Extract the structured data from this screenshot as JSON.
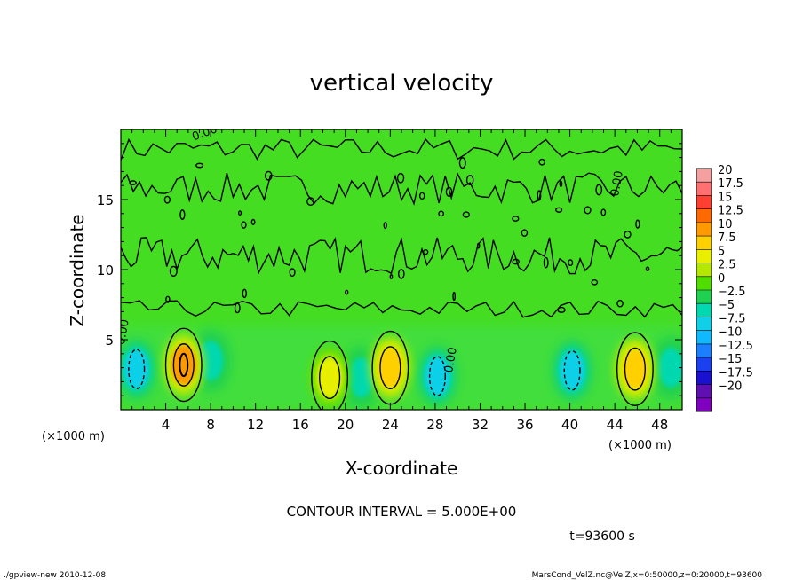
{
  "chart_data": {
    "type": "heatmap",
    "title": "vertical velocity",
    "xlabel": "X-coordinate",
    "ylabel": "Z-coordinate",
    "x_unit_left": "(×1000 m)",
    "x_unit_right": "(×1000 m)",
    "xlim": [
      0,
      50
    ],
    "ylim": [
      0,
      20
    ],
    "x_ticks": [
      4,
      8,
      12,
      16,
      20,
      24,
      28,
      32,
      36,
      40,
      44,
      48
    ],
    "y_ticks": [
      5,
      10,
      15
    ],
    "contour_interval_text": "CONTOUR INTERVAL = 5.000E+00",
    "time_text": "t=93600 s",
    "contour_label": "0.00",
    "colorbar": {
      "levels": [
        20,
        17.5,
        15,
        12.5,
        10,
        7.5,
        5,
        2.5,
        0,
        -2.5,
        -5,
        -7.5,
        -10,
        -12.5,
        -15,
        -17.5,
        -20
      ],
      "colors": [
        "#f4a0a0",
        "#ff7070",
        "#ff4030",
        "#ff6a00",
        "#ff9a00",
        "#ffd000",
        "#e8f000",
        "#b4e800",
        "#50dd00",
        "#20d050",
        "#00d8b0",
        "#10d0e8",
        "#10b8ff",
        "#1a80ff",
        "#1a40f0",
        "#1a10d0",
        "#6010b0",
        "#8000c0"
      ],
      "background": "#44dd22"
    },
    "updrafts": [
      {
        "x": 5.6,
        "z": 3.2,
        "peak": 12
      },
      {
        "x": 18.6,
        "z": 2.3,
        "peak": 7
      },
      {
        "x": 24.0,
        "z": 3.0,
        "peak": 9
      },
      {
        "x": 45.8,
        "z": 2.9,
        "peak": 9
      }
    ],
    "downdrafts": [
      {
        "x": 1.4,
        "z": 2.9,
        "peak": -6
      },
      {
        "x": 8.0,
        "z": 3.5,
        "peak": -3.5
      },
      {
        "x": 21.4,
        "z": 2.3,
        "peak": -3
      },
      {
        "x": 28.2,
        "z": 2.4,
        "peak": -6
      },
      {
        "x": 40.2,
        "z": 2.8,
        "peak": -7
      },
      {
        "x": 49.0,
        "z": 3.0,
        "peak": -4
      }
    ]
  },
  "footer": {
    "left": "./gpview-new  2010-12-08",
    "right": "MarsCond_VelZ.nc@VelZ,x=0:50000,z=0:20000,t=93600"
  }
}
